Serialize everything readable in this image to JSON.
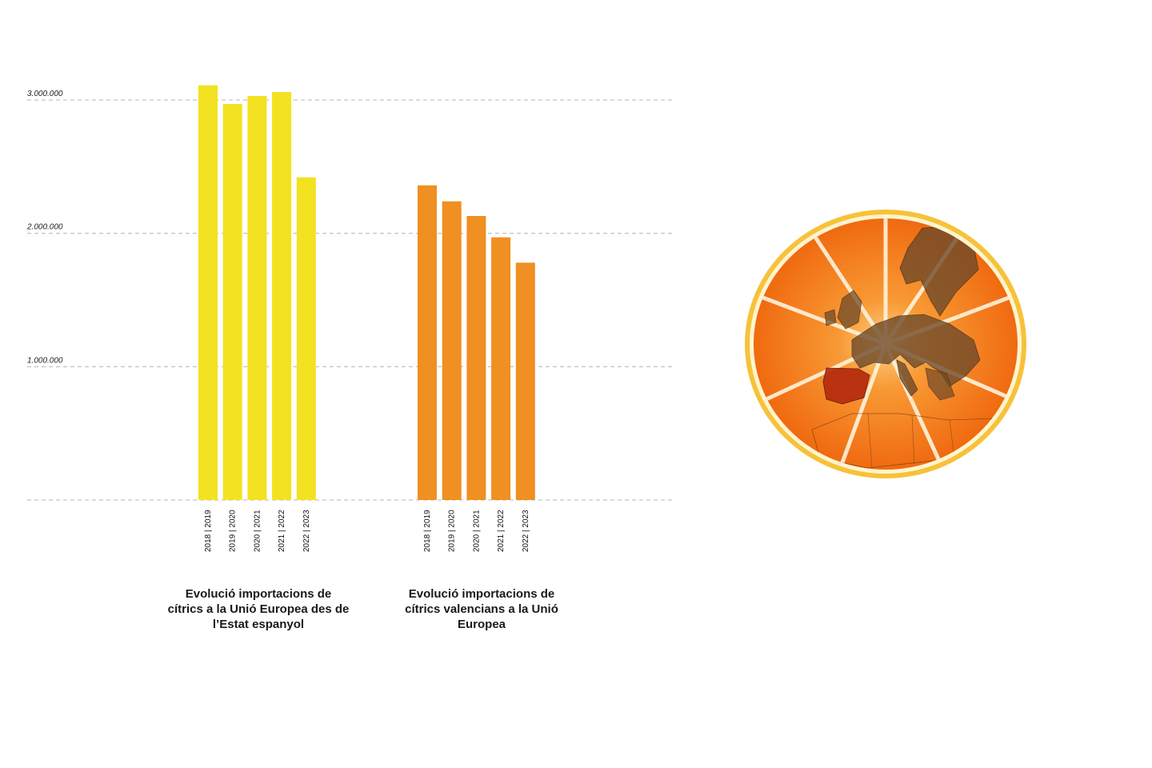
{
  "chart_data": [
    {
      "type": "bar",
      "title": "Evolució importacions de cítrics a la Unió Europea des de l’Estat espanyol",
      "categories": [
        "2018 | 2019",
        "2019 | 2020",
        "2020 | 2021",
        "2021 | 2022",
        "2022 | 2023"
      ],
      "values": [
        3110000,
        2970000,
        3030000,
        3060000,
        2420000
      ],
      "color": "#f2e221",
      "ylim": [
        0,
        3000000
      ],
      "yticks": [
        "1.000.000",
        "2.000.000",
        "3.000.000"
      ],
      "grid": true
    },
    {
      "type": "bar",
      "title": "Evolució importacions de cítrics valencians a la Unió Europea",
      "categories": [
        "2018 | 2019",
        "2019 | 2020",
        "2020 | 2021",
        "2021 | 2022",
        "2022 | 2023"
      ],
      "values": [
        2360000,
        2240000,
        2130000,
        1970000,
        1780000
      ],
      "color": "#f08f22",
      "ylim": [
        0,
        3000000
      ],
      "yticks": [
        "1.000.000",
        "2.000.000",
        "3.000.000"
      ],
      "grid": true
    }
  ],
  "illustration": {
    "icon": "orange-slice-europe-map-icon",
    "colors": {
      "peel": "#f7c23a",
      "flesh": "#f47a16",
      "map": "#6e4a2a",
      "spain": "#b3280e"
    }
  }
}
